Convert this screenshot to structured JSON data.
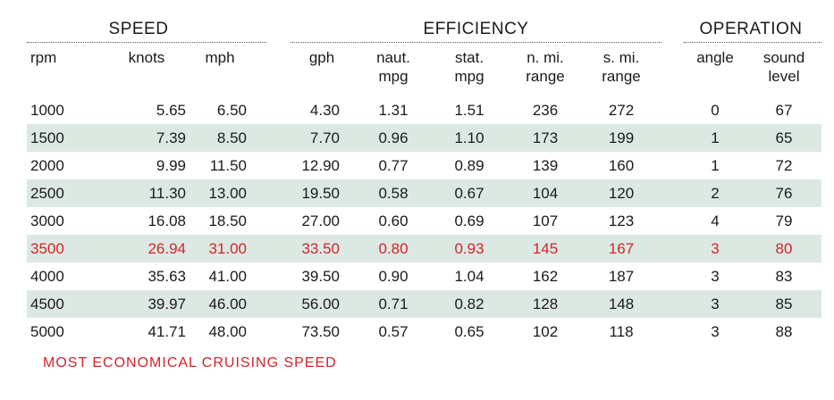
{
  "groups": {
    "speed": "SPEED",
    "efficiency": "EFFICIENCY",
    "operation": "OPERATION"
  },
  "columns": {
    "rpm": [
      "",
      "rpm"
    ],
    "knots": [
      "",
      "knots"
    ],
    "mph": [
      "",
      "mph"
    ],
    "gph": [
      "",
      "gph"
    ],
    "naut_mpg": [
      "naut.",
      "mpg"
    ],
    "stat_mpg": [
      "stat.",
      "mpg"
    ],
    "nmi_range": [
      "n. mi.",
      "range"
    ],
    "smi_range": [
      "s. mi.",
      "range"
    ],
    "angle": [
      "",
      "angle"
    ],
    "sound": [
      "sound",
      "level"
    ]
  },
  "rows": [
    [
      "1000",
      "5.65",
      "6.50",
      "4.30",
      "1.31",
      "1.51",
      "236",
      "272",
      "0",
      "67"
    ],
    [
      "1500",
      "7.39",
      "8.50",
      "7.70",
      "0.96",
      "1.10",
      "173",
      "199",
      "1",
      "65"
    ],
    [
      "2000",
      "9.99",
      "11.50",
      "12.90",
      "0.77",
      "0.89",
      "139",
      "160",
      "1",
      "72"
    ],
    [
      "2500",
      "11.30",
      "13.00",
      "19.50",
      "0.58",
      "0.67",
      "104",
      "120",
      "2",
      "76"
    ],
    [
      "3000",
      "16.08",
      "18.50",
      "27.00",
      "0.60",
      "0.69",
      "107",
      "123",
      "4",
      "79"
    ],
    [
      "3500",
      "26.94",
      "31.00",
      "33.50",
      "0.80",
      "0.93",
      "145",
      "167",
      "3",
      "80"
    ],
    [
      "4000",
      "35.63",
      "41.00",
      "39.50",
      "0.90",
      "1.04",
      "162",
      "187",
      "3",
      "83"
    ],
    [
      "4500",
      "39.97",
      "46.00",
      "56.00",
      "0.71",
      "0.82",
      "128",
      "148",
      "3",
      "85"
    ],
    [
      "5000",
      "41.71",
      "48.00",
      "73.50",
      "0.57",
      "0.65",
      "102",
      "118",
      "3",
      "88"
    ]
  ],
  "highlight_row_rpm": "3500",
  "footnote": "MOST ECONOMICAL CRUISING SPEED",
  "colors": {
    "highlight": "#d2232a",
    "row_shade": "#dce9e2",
    "text": "#1a1a1a"
  }
}
